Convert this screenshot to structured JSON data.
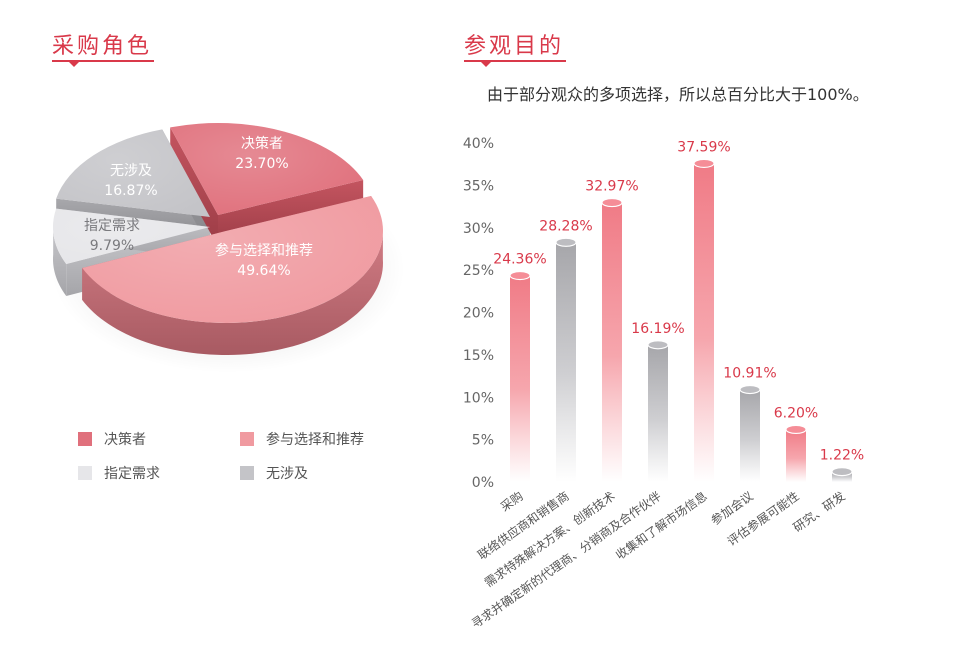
{
  "pie_section": {
    "title": "采购角色"
  },
  "bar_section": {
    "title": "参观目的",
    "subtitle": "由于部分观众的多项选择，所以总百分比大于100%。"
  },
  "colors": {
    "accent": "#d9394a",
    "pie_red": "#e0707c",
    "pie_pink": "#f09aa0",
    "pie_lightgray": "#e6e6e9",
    "pie_gray": "#c4c4c8",
    "bar_red": "#f07b86",
    "bar_gray": "#a6a6aa",
    "value_red": "#d9394a"
  },
  "chart_data": [
    {
      "type": "pie",
      "title": "采购角色",
      "slices": [
        {
          "label": "决策者",
          "value": 23.7,
          "display": "23.70%"
        },
        {
          "label": "参与选择和推荐",
          "value": 49.64,
          "display": "49.64%"
        },
        {
          "label": "指定需求",
          "value": 9.79,
          "display": "9.79%"
        },
        {
          "label": "无涉及",
          "value": 16.87,
          "display": "16.87%"
        }
      ],
      "legend": [
        "决策者",
        "参与选择和推荐",
        "指定需求",
        "无涉及"
      ],
      "legend_position": "bottom"
    },
    {
      "type": "bar",
      "title": "参观目的",
      "subtitle": "由于部分观众的多项选择，所以总百分比大于100%。",
      "categories": [
        "采购",
        "联络供应商和销售商",
        "需求特殊解决方案、创新技术",
        "寻求并确定新的代理商、分销商及合作伙伴",
        "收集和了解市场信息",
        "参加会议",
        "评估参展可能性",
        "研究、研发"
      ],
      "values": [
        24.36,
        28.28,
        32.97,
        16.19,
        37.59,
        10.91,
        6.2,
        1.22
      ],
      "value_labels": [
        "24.36%",
        "28.28%",
        "32.97%",
        "16.19%",
        "37.59%",
        "10.91%",
        "6.20%",
        "1.22%"
      ],
      "bar_colors": [
        "red",
        "gray",
        "red",
        "gray",
        "red",
        "gray",
        "red",
        "gray"
      ],
      "ylim": [
        0,
        40
      ],
      "yticks": [
        "0%",
        "5%",
        "10%",
        "15%",
        "20%",
        "25%",
        "30%",
        "35%",
        "40%"
      ],
      "grid": false
    }
  ]
}
